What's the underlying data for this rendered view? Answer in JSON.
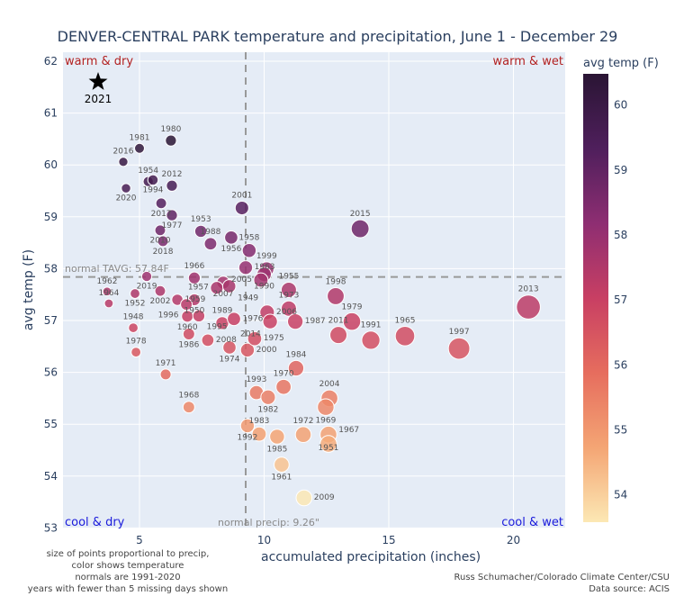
{
  "chart_data": {
    "type": "scatter",
    "title": "DENVER-CENTRAL PARK temperature and precipitation, June 1 - December 29",
    "xlabel": "accumulated precipitation (inches)",
    "ylabel": "avg temp (F)",
    "xlim": [
      0,
      22
    ],
    "ylim": [
      53,
      62.3
    ],
    "xticks": [
      5,
      10,
      15,
      20
    ],
    "yticks": [
      53,
      54,
      55,
      56,
      57,
      58,
      59,
      60,
      61,
      62
    ],
    "grid": true,
    "colorbar": {
      "title": "avg temp (F)",
      "range": [
        53.58,
        60.48
      ],
      "ticks": [
        54,
        55,
        56,
        57,
        58,
        59,
        60
      ],
      "colors": [
        "#fce8b4",
        "#f4a574",
        "#e66d5e",
        "#c83f63",
        "#8e2e72",
        "#4f1f5c",
        "#2a1534"
      ]
    },
    "normal_temp": 57.84,
    "normal_temp_label": "normal TAVG: 57.84F",
    "normal_precip": 9.26,
    "normal_precip_label": "normal precip: 9.26\"",
    "quadrants": {
      "tl": "warm & dry",
      "tr": "warm & wet",
      "bl": "cool & dry",
      "br": "cool & wet"
    },
    "quadrant_colors": {
      "warm": "#b22222",
      "cool": "#1a1adb"
    },
    "current": {
      "year": "2021",
      "precip": 3.34,
      "temp": 61.6,
      "marker": "star"
    },
    "points": [
      [
        "1981",
        5.0,
        60.32
      ],
      [
        "1980",
        6.26,
        60.47
      ],
      [
        "2016",
        4.35,
        60.06
      ],
      [
        "1954",
        5.35,
        59.68
      ],
      [
        "1994",
        5.54,
        59.71
      ],
      [
        "2012",
        6.3,
        59.6
      ],
      [
        "2020",
        4.46,
        59.55
      ],
      [
        "2017",
        5.87,
        59.26
      ],
      [
        "1977",
        6.3,
        59.03
      ],
      [
        "2010",
        5.83,
        58.74
      ],
      [
        "2018",
        5.94,
        58.53
      ],
      [
        "1953",
        7.46,
        58.72
      ],
      [
        "1988",
        7.85,
        58.48
      ],
      [
        "1956",
        8.68,
        58.6
      ],
      [
        "1958",
        9.4,
        58.35
      ],
      [
        "2001",
        9.11,
        59.17
      ],
      [
        "2015",
        13.85,
        58.77
      ],
      [
        "1999",
        10.1,
        57.99
      ],
      [
        "1990",
        10.0,
        57.89
      ],
      [
        "1963",
        9.26,
        58.02
      ],
      [
        "2005",
        9.87,
        57.78
      ],
      [
        "1966",
        7.2,
        57.82
      ],
      [
        "2007",
        8.36,
        57.73
      ],
      [
        "1957",
        8.1,
        57.63
      ],
      [
        "1949",
        8.6,
        57.66
      ],
      [
        "2019",
        5.29,
        57.85
      ],
      [
        "2002",
        5.83,
        57.57
      ],
      [
        "1952",
        4.82,
        57.52
      ],
      [
        "1962",
        3.7,
        57.56
      ],
      [
        "1964",
        3.77,
        57.33
      ],
      [
        "1959",
        6.52,
        57.4
      ],
      [
        "1950",
        7.2,
        57.4
      ],
      [
        "1996",
        6.88,
        57.31
      ],
      [
        "1960",
        6.92,
        57.08
      ],
      [
        "1995",
        7.38,
        57.09
      ],
      [
        "1986",
        6.98,
        56.74
      ],
      [
        "1989",
        8.32,
        56.95
      ],
      [
        "1976",
        8.79,
        57.03
      ],
      [
        "2008",
        7.74,
        56.62
      ],
      [
        "1974",
        8.61,
        56.48
      ],
      [
        "2000",
        9.33,
        56.43
      ],
      [
        "1975",
        9.62,
        56.65
      ],
      [
        "1948",
        4.75,
        56.86
      ],
      [
        "1978",
        4.86,
        56.39
      ],
      [
        "1971",
        6.05,
        55.96
      ],
      [
        "1968",
        6.98,
        55.33
      ],
      [
        "1955",
        10.99,
        57.59
      ],
      [
        "1973",
        10.99,
        57.23
      ],
      [
        "2006",
        10.12,
        57.16
      ],
      [
        "2014",
        10.24,
        56.98
      ],
      [
        "1987",
        11.25,
        56.98
      ],
      [
        "1998",
        12.87,
        57.47
      ],
      [
        "1979",
        13.52,
        56.98
      ],
      [
        "2011",
        12.98,
        56.72
      ],
      [
        "1991",
        14.28,
        56.62
      ],
      [
        "1965",
        15.65,
        56.7
      ],
      [
        "1997",
        17.82,
        56.46
      ],
      [
        "2013",
        20.6,
        57.26
      ],
      [
        "1984",
        11.28,
        56.08
      ],
      [
        "1970",
        10.78,
        55.72
      ],
      [
        "1993",
        9.69,
        55.61
      ],
      [
        "1982",
        10.16,
        55.52
      ],
      [
        "2004",
        12.62,
        55.5
      ],
      [
        "1969",
        12.47,
        55.33
      ],
      [
        "1992",
        9.33,
        54.97
      ],
      [
        "1983",
        9.8,
        54.81
      ],
      [
        "1985",
        10.52,
        54.76
      ],
      [
        "1972",
        11.57,
        54.8
      ],
      [
        "1951",
        12.58,
        54.8
      ],
      [
        "1967",
        12.58,
        54.62
      ],
      [
        "1961",
        10.7,
        54.22
      ],
      [
        "2009",
        11.6,
        53.58
      ]
    ]
  },
  "notes": {
    "left": [
      "size of points proportional to precip,",
      "color shows temperature",
      "normals are 1991-2020",
      "years with fewer than 5 missing days shown"
    ],
    "right": [
      "Russ Schumacher/Colorado Climate Center/CSU",
      "Data source: ACIS"
    ]
  }
}
